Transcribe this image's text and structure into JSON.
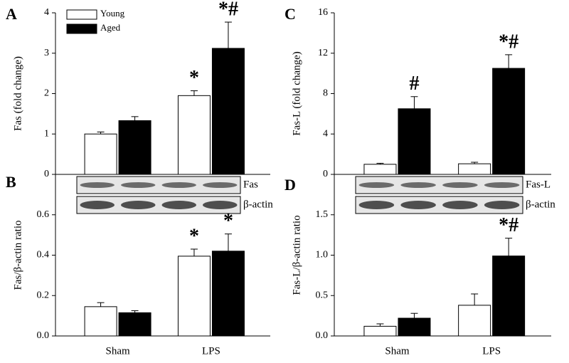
{
  "chart_data": [
    {
      "type": "bar",
      "panel_label": "A",
      "ylabel": "Fas (fold change)",
      "categories": [
        null,
        null
      ],
      "series": [
        {
          "name": "Young",
          "color": "#ffffff",
          "values": [
            1.0,
            1.95
          ],
          "errors": [
            0.05,
            0.12
          ],
          "annotations": [
            null,
            "*"
          ]
        },
        {
          "name": "Aged",
          "color": "#000000",
          "values": [
            1.33,
            3.12
          ],
          "errors": [
            0.1,
            0.65
          ],
          "annotations": [
            null,
            "*#"
          ]
        }
      ],
      "ylim": [
        0,
        4
      ],
      "yticks": [
        0,
        1,
        2,
        3,
        4
      ],
      "legend": "upper left"
    },
    {
      "type": "bar",
      "panel_label": "B",
      "ylabel": "Fas/β-actin ratio",
      "categories": [
        "Sham",
        "LPS"
      ],
      "blot_labels": [
        "Fas",
        "β-actin"
      ],
      "series": [
        {
          "color": "#ffffff",
          "values": [
            0.145,
            0.395
          ],
          "errors": [
            0.02,
            0.035
          ],
          "annotations": [
            null,
            "*"
          ]
        },
        {
          "color": "#000000",
          "values": [
            0.115,
            0.42
          ],
          "errors": [
            0.01,
            0.085
          ],
          "annotations": [
            null,
            "*"
          ]
        }
      ],
      "ylim": [
        0,
        0.8
      ],
      "yticks": [
        {
          "value": 0,
          "label": "0.0"
        },
        0.2,
        0.4,
        0.6
      ]
    },
    {
      "type": "bar",
      "panel_label": "C",
      "ylabel": "Fas-L (fold change)",
      "categories": [
        null,
        null
      ],
      "series": [
        {
          "color": "#ffffff",
          "values": [
            1.0,
            1.05
          ],
          "errors": [
            0.1,
            0.15
          ],
          "annotations": [
            null,
            null
          ]
        },
        {
          "color": "#000000",
          "values": [
            6.5,
            10.5
          ],
          "errors": [
            1.2,
            1.35
          ],
          "annotations": [
            "#",
            "*#"
          ]
        }
      ],
      "ylim": [
        0,
        16
      ],
      "yticks": [
        0,
        4,
        8,
        12,
        16
      ]
    },
    {
      "type": "bar",
      "panel_label": "D",
      "ylabel": "Fas-L/β-actin ratio",
      "categories": [
        "Sham",
        "LPS"
      ],
      "blot_labels": [
        "Fas-L",
        "β-actin"
      ],
      "series": [
        {
          "color": "#ffffff",
          "values": [
            0.12,
            0.38
          ],
          "errors": [
            0.03,
            0.14
          ],
          "annotations": [
            null,
            null
          ]
        },
        {
          "color": "#000000",
          "values": [
            0.22,
            0.99
          ],
          "errors": [
            0.06,
            0.22
          ],
          "annotations": [
            null,
            "*#"
          ]
        }
      ],
      "ylim": [
        0,
        2
      ],
      "yticks": [
        {
          "value": 0,
          "label": "0.0"
        },
        0.5,
        {
          "value": 1,
          "label": "1.0"
        },
        1.5
      ]
    }
  ]
}
